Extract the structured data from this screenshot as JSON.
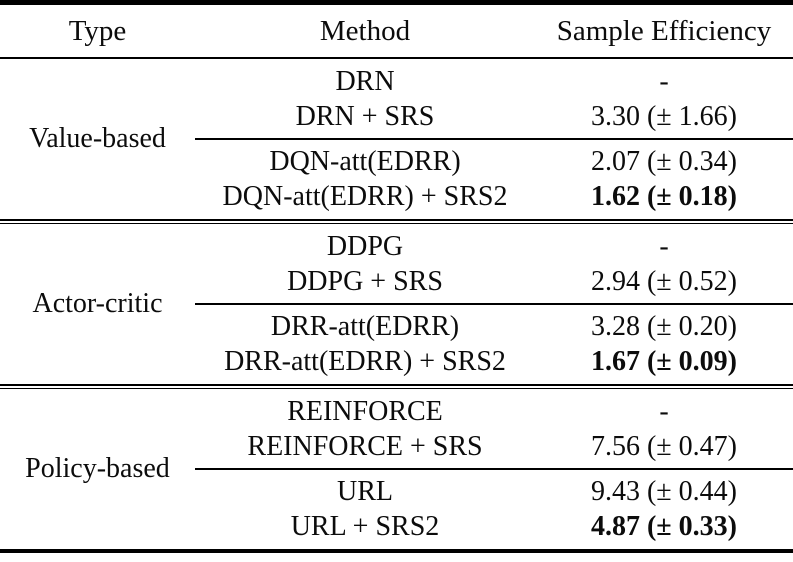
{
  "table": {
    "headers": [
      "Type",
      "Method",
      "Sample Efficiency"
    ],
    "groups": [
      {
        "type": "Value-based",
        "rows": [
          {
            "method": "DRN",
            "value": "-",
            "bold": false
          },
          {
            "method": "DRN + SRS",
            "value": "3.30 (± 1.66)",
            "bold": false
          },
          {
            "method": "DQN-att(EDRR)",
            "value": "2.07 (± 0.34)",
            "bold": false
          },
          {
            "method": "DQN-att(EDRR) + SRS2",
            "value": "1.62 (± 0.18)",
            "bold": true
          }
        ]
      },
      {
        "type": "Actor-critic",
        "rows": [
          {
            "method": "DDPG",
            "value": "-",
            "bold": false
          },
          {
            "method": "DDPG + SRS",
            "value": "2.94 (± 0.52)",
            "bold": false
          },
          {
            "method": "DRR-att(EDRR)",
            "value": "3.28 (± 0.20)",
            "bold": false
          },
          {
            "method": "DRR-att(EDRR) + SRS2",
            "value": "1.67 (± 0.09)",
            "bold": true
          }
        ]
      },
      {
        "type": "Policy-based",
        "rows": [
          {
            "method": "REINFORCE",
            "value": "-",
            "bold": false
          },
          {
            "method": "REINFORCE + SRS",
            "value": "7.56 (± 0.47)",
            "bold": false
          },
          {
            "method": "URL",
            "value": "9.43 (± 0.44)",
            "bold": false
          },
          {
            "method": "URL + SRS2",
            "value": "4.87 (± 0.33)",
            "bold": true
          }
        ]
      }
    ]
  },
  "colors": {
    "text": "#0c0c0c",
    "background": "#ffffff",
    "rule": "#000000"
  }
}
